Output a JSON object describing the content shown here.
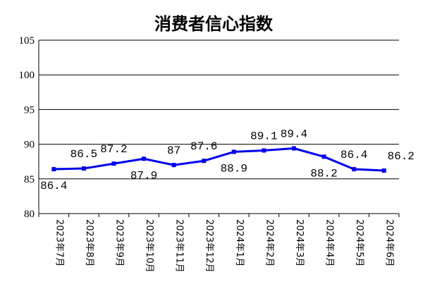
{
  "chart_data": {
    "type": "line",
    "title": "消费者信心指数",
    "xlabel": "",
    "ylabel": "",
    "ylim": [
      80,
      105
    ],
    "yticks": [
      80,
      85,
      90,
      95,
      100,
      105
    ],
    "grid": true,
    "legend": "none",
    "line_color": "#0000ee",
    "categories": [
      "2023年7月",
      "2023年8月",
      "2023年9月",
      "2023年10月",
      "2023年11月",
      "2023年12月",
      "2024年1月",
      "2024年2月",
      "2024年3月",
      "2024年4月",
      "2024年5月",
      "2024年6月"
    ],
    "series": [
      {
        "values": [
          86.4,
          86.5,
          87.2,
          87.9,
          87,
          87.6,
          88.9,
          89.1,
          89.4,
          88.2,
          86.4,
          86.2
        ],
        "labels": [
          "86.4",
          "86.5",
          "87.2",
          "87.9",
          "87",
          "87.6",
          "88.9",
          "89.1",
          "89.4",
          "88.2",
          "86.4",
          "86.2"
        ]
      }
    ]
  }
}
